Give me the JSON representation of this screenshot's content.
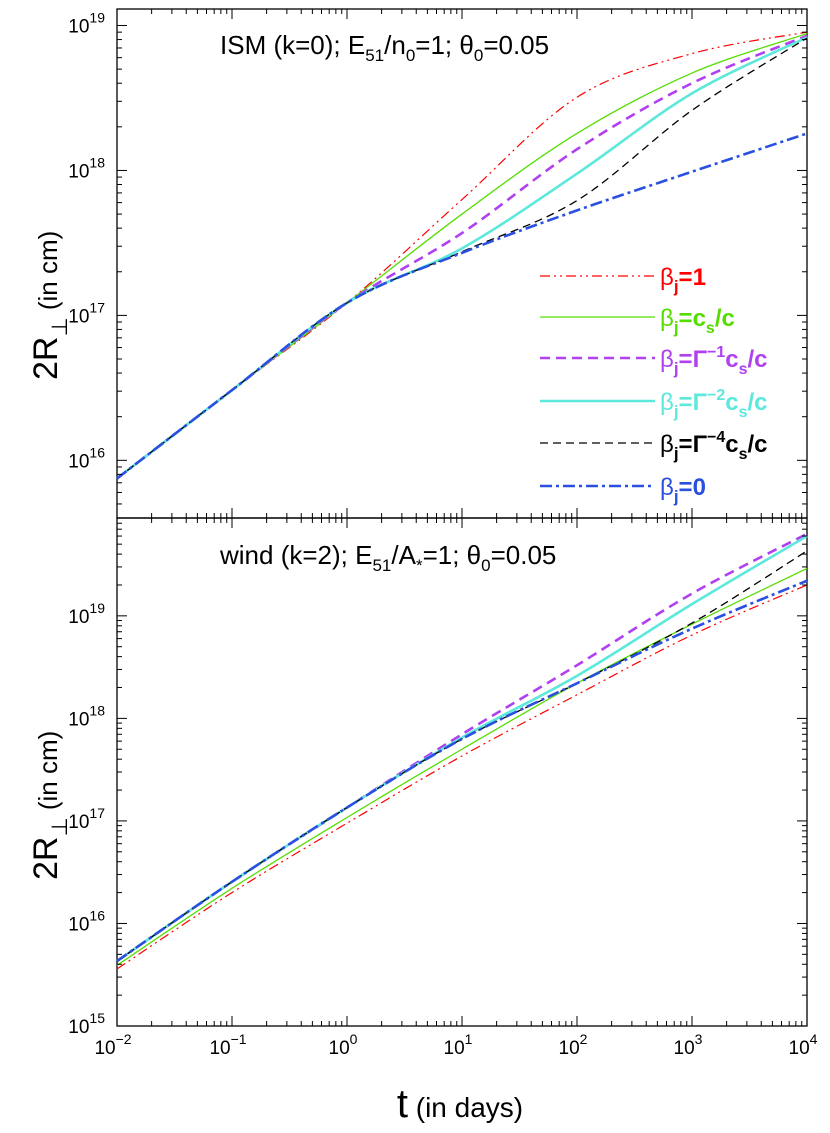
{
  "chart_data": [
    {
      "type": "line",
      "title": {
        "main": "ISM (k=0); E",
        "sub1": "51",
        "mid": "/n",
        "sub2": "0",
        "tail": "=1; θ",
        "sub3": "0",
        "end": "=0.05"
      },
      "ylabel": {
        "main": "2R",
        "sub": "⊥",
        "rest": " (in cm)"
      },
      "xscale": "log",
      "yscale": "log",
      "xlim": [
        0.01,
        10000
      ],
      "ylim": [
        4000000000000000.0,
        1.3e+19
      ],
      "yticks": [
        {
          "base": "10",
          "exp": "16"
        },
        {
          "base": "10",
          "exp": "17"
        },
        {
          "base": "10",
          "exp": "18"
        },
        {
          "base": "10",
          "exp": "19"
        }
      ],
      "legend": {
        "placement": "right-middle"
      },
      "series": [
        {
          "name": "βj=1",
          "color": "#ff0000",
          "label": {
            "beta": "β",
            "j": "j",
            "rest": "=1"
          },
          "x": [
            0.01,
            0.1,
            1,
            10,
            100,
            1000,
            10000
          ],
          "y": [
            7500000000000000.0,
            3.05e+16,
            1.22e+17,
            6.3e+17,
            3.2e+18,
            6.4e+18,
            9e+18
          ]
        },
        {
          "name": "βj=cs/c",
          "color": "#55dd00",
          "label": {
            "beta": "β",
            "j": "j",
            "rest": "=c",
            "s": "s",
            "tail": "/c"
          },
          "x": [
            0.01,
            0.1,
            1,
            10,
            100,
            1000,
            10000
          ],
          "y": [
            7500000000000000.0,
            3.05e+16,
            1.22e+17,
            5e+17,
            1.8e+18,
            4.7e+18,
            8.8e+18
          ]
        },
        {
          "name": "βj=Γ^-1 cs/c",
          "color": "#b040f0",
          "label": {
            "beta": "β",
            "j": "j",
            "mid": "=Γ",
            "exp": "−1",
            "rest": "c",
            "s": "s",
            "tail": "/c"
          },
          "x": [
            0.01,
            0.1,
            1,
            10,
            100,
            1000,
            10000
          ],
          "y": [
            7500000000000000.0,
            3.05e+16,
            1.22e+17,
            3.7e+17,
            1.4e+18,
            4e+18,
            8.5e+18
          ]
        },
        {
          "name": "βj=Γ^-2 cs/c",
          "color": "#5de8dc",
          "label": {
            "beta": "β",
            "j": "j",
            "mid": "=Γ",
            "exp": "−2",
            "rest": "c",
            "s": "s",
            "tail": "/c"
          },
          "x": [
            0.01,
            0.1,
            1,
            10,
            100,
            1000,
            10000
          ],
          "y": [
            7500000000000000.0,
            3.05e+16,
            1.22e+17,
            2.9e+17,
            9.5e+17,
            3.4e+18,
            8.3e+18
          ]
        },
        {
          "name": "βj=Γ^-4 cs/c",
          "color": "#000000",
          "label": {
            "beta": "β",
            "j": "j",
            "mid": "=Γ",
            "exp": "−4",
            "rest": "c",
            "s": "s",
            "tail": "/c"
          },
          "x": [
            0.01,
            0.1,
            1,
            10,
            100,
            1000,
            10000
          ],
          "y": [
            7500000000000000.0,
            3.05e+16,
            1.22e+17,
            2.75e+17,
            6.2e+17,
            2.6e+18,
            8.2e+18
          ]
        },
        {
          "name": "βj=0",
          "color": "#2a50e0",
          "label": {
            "beta": "β",
            "j": "j",
            "rest": "=0"
          },
          "x": [
            0.01,
            0.1,
            1,
            10,
            100,
            1000,
            10000
          ],
          "y": [
            7500000000000000.0,
            3.05e+16,
            1.22e+17,
            2.7e+17,
            5.3e+17,
            9.8e+17,
            1.8e+18
          ]
        }
      ]
    },
    {
      "type": "line",
      "title": {
        "main": "wind (k=2); E",
        "sub1": "51",
        "mid": "/A",
        "sub2": "*",
        "tail": "=1; θ",
        "sub3": "0",
        "end": "=0.05"
      },
      "ylabel": {
        "main": "2R",
        "sub": "⊥",
        "rest": " (in cm)"
      },
      "xlabel": {
        "t": "t",
        "rest": " (in days)"
      },
      "xscale": "log",
      "yscale": "log",
      "xlim": [
        0.01,
        10000
      ],
      "ylim": [
        1000000000000000.0,
        9e+19
      ],
      "xticks": [
        {
          "base": "10",
          "exp": "−2"
        },
        {
          "base": "10",
          "exp": "−1"
        },
        {
          "base": "10",
          "exp": "0"
        },
        {
          "base": "10",
          "exp": "1"
        },
        {
          "base": "10",
          "exp": "2"
        },
        {
          "base": "10",
          "exp": "3"
        },
        {
          "base": "10",
          "exp": "4"
        }
      ],
      "yticks": [
        {
          "base": "10",
          "exp": "15"
        },
        {
          "base": "10",
          "exp": "16"
        },
        {
          "base": "10",
          "exp": "17"
        },
        {
          "base": "10",
          "exp": "18"
        },
        {
          "base": "10",
          "exp": "19"
        }
      ],
      "series": [
        {
          "name": "βj=1",
          "color": "#ff0000",
          "x": [
            0.01,
            0.1,
            1,
            10,
            100,
            1000,
            10000
          ],
          "y": [
            3600000000000000.0,
            2e+16,
            9.5e+16,
            4.3e+17,
            1.7e+18,
            6.5e+18,
            2e+19
          ]
        },
        {
          "name": "βj=cs/c",
          "color": "#55dd00",
          "x": [
            0.01,
            0.1,
            1,
            10,
            100,
            1000,
            10000
          ],
          "y": [
            3900000000000000.0,
            2.2e+16,
            1.08e+17,
            5e+17,
            2.2e+18,
            8.3e+18,
            2.9e+19
          ]
        },
        {
          "name": "βj=Γ^-1 cs/c",
          "color": "#b040f0",
          "x": [
            0.01,
            0.1,
            1,
            10,
            100,
            1000,
            10000
          ],
          "y": [
            4300000000000000.0,
            2.55e+16,
            1.35e+17,
            7e+17,
            3.3e+18,
            1.65e+19,
            6.3e+19
          ]
        },
        {
          "name": "βj=Γ^-2 cs/c",
          "color": "#5de8dc",
          "x": [
            0.01,
            0.1,
            1,
            10,
            100,
            1000,
            10000
          ],
          "y": [
            4300000000000000.0,
            2.55e+16,
            1.35e+17,
            6.5e+17,
            2.6e+18,
            1.3e+19,
            6e+19
          ]
        },
        {
          "name": "βj=Γ^-4 cs/c",
          "color": "#000000",
          "x": [
            0.01,
            0.1,
            1,
            10,
            100,
            1000,
            10000
          ],
          "y": [
            4300000000000000.0,
            2.55e+16,
            1.35e+17,
            6.3e+17,
            2.2e+18,
            8.5e+18,
            4.3e+19
          ]
        },
        {
          "name": "βj=0",
          "color": "#2a50e0",
          "x": [
            0.01,
            0.1,
            1,
            10,
            100,
            1000,
            10000
          ],
          "y": [
            4300000000000000.0,
            2.55e+16,
            1.35e+17,
            6.3e+17,
            2.2e+18,
            7.5e+18,
            2.2e+19
          ]
        }
      ]
    }
  ]
}
